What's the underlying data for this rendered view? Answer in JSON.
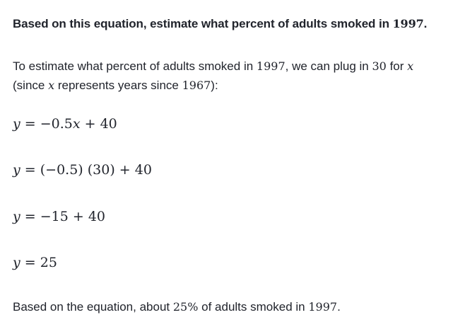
{
  "heading": {
    "prefix": "Based on this equation, estimate what percent of adults smoked in ",
    "year": "1997",
    "suffix": "."
  },
  "explanation": {
    "t1": "To estimate what percent of adults smoked in ",
    "year": "1997",
    "t2": ", we can plug in ",
    "value": "30",
    "t3": " for ",
    "var": "x",
    "line2_t1": "(since ",
    "line2_var": "x",
    "line2_t2": " represents years since ",
    "line2_year": "1967",
    "line2_t3": "):"
  },
  "equations": {
    "eq1": {
      "y": "y",
      "rest_a": " = −0.5",
      "x": "x",
      "rest_b": " + 40"
    },
    "eq2": {
      "y": "y",
      "rest": " = (−0.5) (30) + 40"
    },
    "eq3": {
      "y": "y",
      "rest": " = −15 + 40"
    },
    "eq4": {
      "y": "y",
      "rest": " = 25"
    }
  },
  "conclusion": {
    "t1": "Based on the equation, about ",
    "percent": "25%",
    "t2": " of adults smoked in ",
    "year": "1997",
    "t3": "."
  }
}
